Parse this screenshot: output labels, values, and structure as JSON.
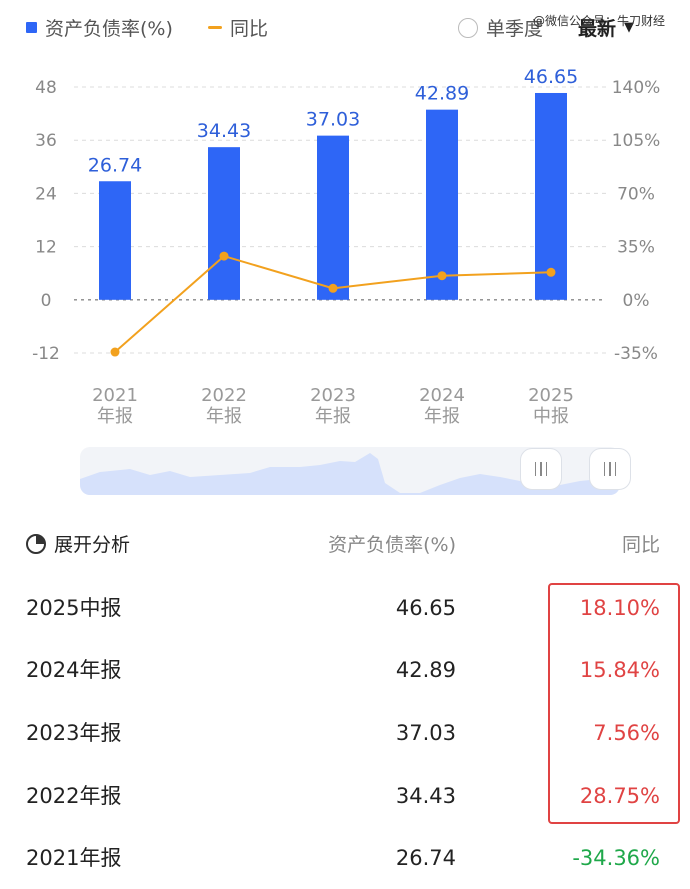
{
  "legend": {
    "bar_label": "资产负债率(%)",
    "line_label": "同比",
    "toggle_label": "单季度",
    "period_select": "最新"
  },
  "watermark": "@微信公众号：牛刀财经",
  "chart_data": {
    "type": "bar",
    "categories": [
      "2021\n年报",
      "2022\n年报",
      "2023\n年报",
      "2024\n年报",
      "2025\n中报"
    ],
    "series": [
      {
        "name": "资产负债率(%)",
        "type": "bar",
        "axis": "left",
        "values": [
          26.74,
          34.43,
          37.03,
          42.89,
          46.65
        ],
        "color": "#2e66f6"
      },
      {
        "name": "同比",
        "type": "line",
        "axis": "right",
        "values": [
          -34.36,
          28.75,
          7.56,
          15.84,
          18.1
        ],
        "color": "#f2a11e"
      }
    ],
    "y_left": {
      "ticks": [
        "48",
        "36",
        "24",
        "12",
        "0",
        "-12"
      ],
      "range": [
        -12,
        48
      ]
    },
    "y_right": {
      "ticks": [
        "140%",
        "105%",
        "70%",
        "35%",
        "0%",
        "-35%"
      ],
      "range": [
        -35,
        140
      ]
    },
    "grid": "dashed",
    "zero_line": "dotted"
  },
  "table": {
    "header": {
      "name": "展开分析",
      "value": "资产负债率(%)",
      "yoy": "同比"
    },
    "rows": [
      {
        "period": "2025中报",
        "value": "46.65",
        "yoy": "18.10%",
        "trend": "up"
      },
      {
        "period": "2024年报",
        "value": "42.89",
        "yoy": "15.84%",
        "trend": "up"
      },
      {
        "period": "2023年报",
        "value": "37.03",
        "yoy": "7.56%",
        "trend": "up"
      },
      {
        "period": "2022年报",
        "value": "34.43",
        "yoy": "28.75%",
        "trend": "up"
      },
      {
        "period": "2021年报",
        "value": "26.74",
        "yoy": "-34.36%",
        "trend": "down"
      }
    ]
  },
  "colors": {
    "bar": "#2e66f6",
    "line": "#f2a11e",
    "up": "#e04343",
    "down": "#1fa84a",
    "highlight_border": "#e04343"
  }
}
